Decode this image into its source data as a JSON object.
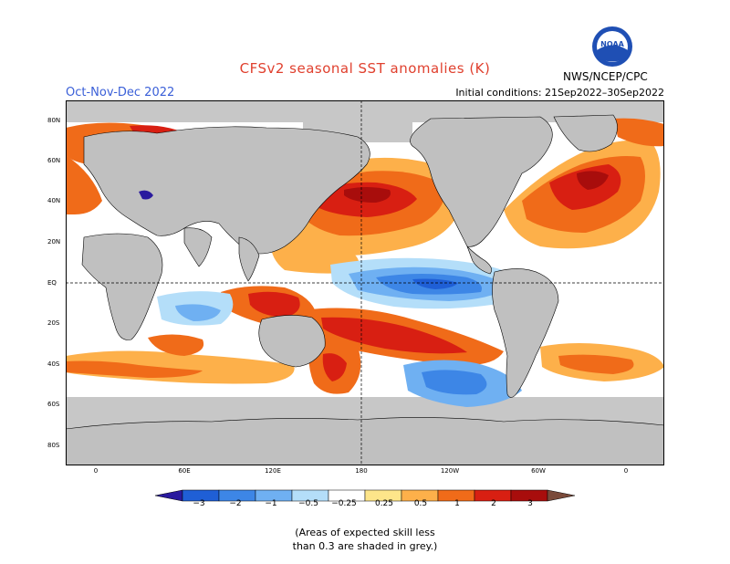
{
  "title": "CFSv2 seasonal SST anomalies (K)",
  "season": "Oct-Nov-Dec 2022",
  "initial_conditions": "Initial conditions: 21Sep2022–30Sep2022",
  "agency": "NWS/NCEP/CPC",
  "logo_text": "NOAA",
  "lat_labels": [
    "80N",
    "60N",
    "40N",
    "20N",
    "EQ",
    "20S",
    "40S",
    "60S",
    "80S"
  ],
  "lon_labels": [
    "0",
    "60E",
    "120E",
    "180",
    "120W",
    "60W",
    "0"
  ],
  "colorbar": {
    "labels": [
      "−3",
      "−2",
      "−1",
      "−0.5",
      "−0.25",
      "0.25",
      "0.5",
      "1",
      "2",
      "3"
    ],
    "colors": [
      "#2a1a9e",
      "#1f5fd6",
      "#3d86e6",
      "#6fb0f2",
      "#b4def9",
      "#ffffff",
      "#fde58a",
      "#fdb04a",
      "#f06b19",
      "#d81f12",
      "#a80d0c",
      "#7a4a3a"
    ]
  },
  "note_line1": "(Areas of expected skill less",
  "note_line2": "than 0.3 are shaded in grey.)",
  "colors": {
    "land": "#c0c0c0",
    "low_skill": "#c7c7c7",
    "ocean_neutral": "#ffffff"
  }
}
